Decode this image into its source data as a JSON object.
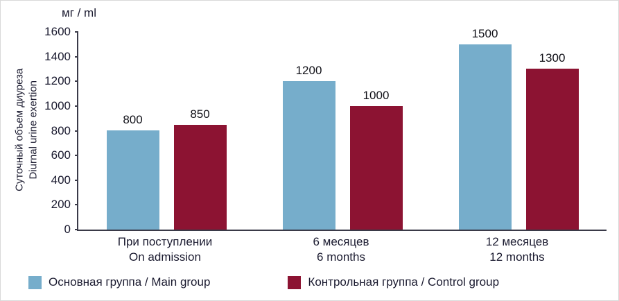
{
  "chart_data": {
    "type": "bar",
    "title": "",
    "unit_label": "мг / ml",
    "ylabel_line1": "Суточный объем диуреза",
    "ylabel_line2": "Diurnal urine exertion",
    "xlabel": "",
    "ylim": [
      0,
      1600
    ],
    "ytick_step": 200,
    "grid": false,
    "legend_position": "bottom",
    "categories": [
      {
        "line1": "При поступлении",
        "line2": "On admission"
      },
      {
        "line1": "6 месяцев",
        "line2": "6 months"
      },
      {
        "line1": "12 месяцев",
        "line2": "12 months"
      }
    ],
    "series": [
      {
        "name": "Основная группа / Main group",
        "key": "main-group",
        "color": "#76ADCB",
        "values": [
          800,
          1200,
          1500
        ]
      },
      {
        "name": "Контрольная группа / Control group",
        "key": "control-group",
        "color": "#8C1332",
        "values": [
          850,
          1000,
          1300
        ]
      }
    ]
  }
}
